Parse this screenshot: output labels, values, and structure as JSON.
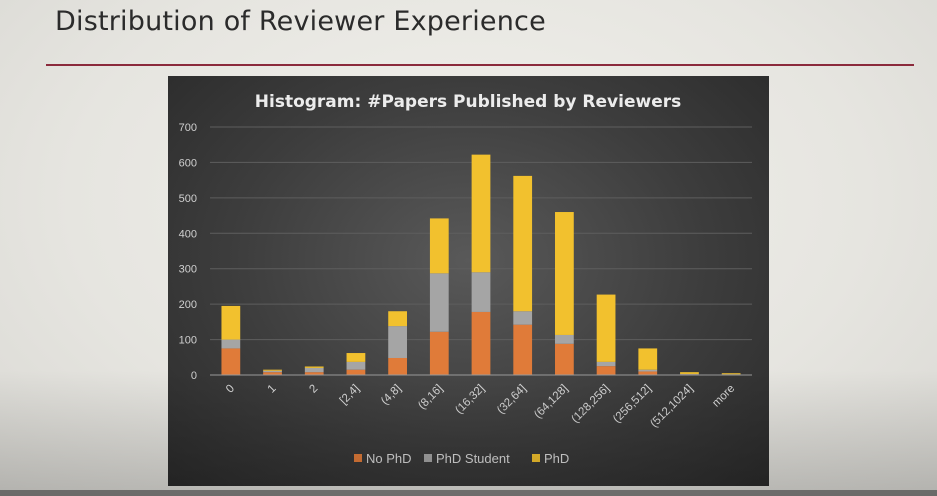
{
  "slide": {
    "title": "Distribution of Reviewer Experience"
  },
  "chart_data": {
    "type": "bar",
    "stacked": true,
    "title": "Histogram: #Papers Published by Reviewers",
    "xlabel": "",
    "ylabel": "",
    "ylim": [
      0,
      700
    ],
    "yticks": [
      0,
      100,
      200,
      300,
      400,
      500,
      600,
      700
    ],
    "grid": true,
    "legend_position": "bottom",
    "categories": [
      "0",
      "1",
      "2",
      "[2,4]",
      "(4,8]",
      "(8,16]",
      "(16,32]",
      "(32,64]",
      "(64,128]",
      "(128,256]",
      "(256,512]",
      "(512,1024]",
      "more"
    ],
    "series": [
      {
        "name": "No PhD",
        "color": "#e07b39",
        "values": [
          75,
          8,
          8,
          15,
          48,
          122,
          178,
          142,
          88,
          25,
          10,
          2,
          1
        ]
      },
      {
        "name": "PhD Student",
        "color": "#a5a5a5",
        "values": [
          25,
          4,
          12,
          22,
          90,
          165,
          112,
          38,
          25,
          12,
          5,
          1,
          1
        ]
      },
      {
        "name": "PhD",
        "color": "#f2c12e",
        "values": [
          95,
          3,
          4,
          25,
          42,
          155,
          332,
          382,
          347,
          190,
          60,
          5,
          3
        ]
      }
    ]
  }
}
